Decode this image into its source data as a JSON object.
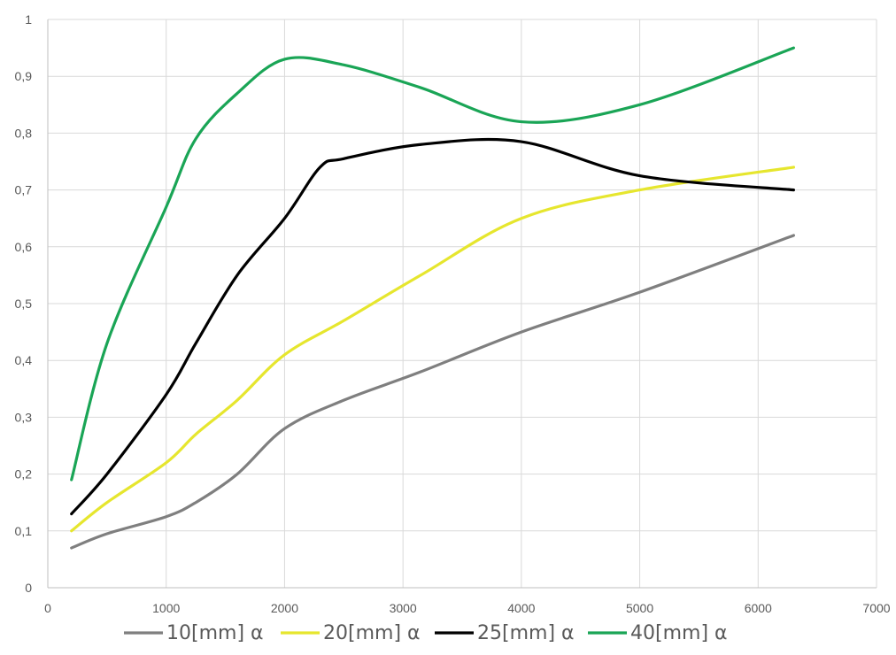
{
  "chart_data": {
    "type": "line",
    "smooth": true,
    "title": "",
    "xlabel": "",
    "ylabel": "",
    "xlim": [
      0,
      7000
    ],
    "ylim": [
      0,
      1
    ],
    "x_ticks": [
      0,
      1000,
      2000,
      3000,
      4000,
      5000,
      6000,
      7000
    ],
    "x_tick_labels": [
      "0",
      "1000",
      "2000",
      "3000",
      "4000",
      "5000",
      "6000",
      "7000"
    ],
    "y_ticks": [
      0,
      0.1,
      0.2,
      0.3,
      0.4,
      0.5,
      0.6,
      0.7,
      0.8,
      0.9,
      1
    ],
    "y_tick_labels": [
      "0",
      "0,1",
      "0,2",
      "0,3",
      "0,4",
      "0,5",
      "0,6",
      "0,7",
      "0,8",
      "0,9",
      "1"
    ],
    "grid": true,
    "legend_position": "bottom",
    "series": [
      {
        "name": "10[mm] α",
        "color": "#7f7f7f",
        "x": [
          200,
          500,
          1000,
          1250,
          1600,
          2000,
          2500,
          3150,
          4000,
          5000,
          6300
        ],
        "y": [
          0.07,
          0.095,
          0.125,
          0.15,
          0.2,
          0.28,
          0.33,
          0.38,
          0.45,
          0.52,
          0.62
        ]
      },
      {
        "name": "20[mm] α",
        "color": "#e6e62e",
        "x": [
          200,
          500,
          1000,
          1250,
          1600,
          2000,
          2500,
          3150,
          4000,
          5000,
          6300
        ],
        "y": [
          0.1,
          0.15,
          0.22,
          0.27,
          0.33,
          0.41,
          0.47,
          0.55,
          0.65,
          0.7,
          0.74
        ]
      },
      {
        "name": "25[mm] α",
        "color": "#000000",
        "x": [
          200,
          500,
          1000,
          1250,
          1600,
          2000,
          2300,
          2500,
          3150,
          4000,
          5000,
          6300
        ],
        "y": [
          0.13,
          0.2,
          0.34,
          0.43,
          0.55,
          0.65,
          0.74,
          0.755,
          0.78,
          0.785,
          0.725,
          0.7
        ]
      },
      {
        "name": "40[mm] α",
        "color": "#1aa556",
        "x": [
          200,
          500,
          1000,
          1250,
          1600,
          2000,
          2500,
          3150,
          4000,
          5000,
          6300
        ],
        "y": [
          0.19,
          0.43,
          0.67,
          0.79,
          0.87,
          0.93,
          0.92,
          0.88,
          0.82,
          0.85,
          0.95
        ]
      }
    ]
  }
}
